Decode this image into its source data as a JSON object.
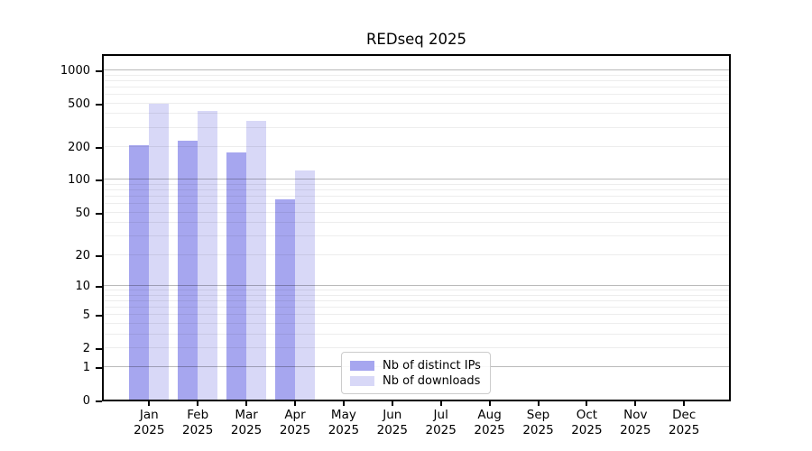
{
  "chart_data": {
    "type": "bar",
    "title": "REDseq 2025",
    "year_label": "2025",
    "categories": [
      "Jan",
      "Feb",
      "Mar",
      "Apr",
      "May",
      "Jun",
      "Jul",
      "Aug",
      "Sep",
      "Oct",
      "Nov",
      "Dec"
    ],
    "series": [
      {
        "name": "Nb of distinct IPs",
        "color": "#a6a6ef",
        "values": [
          205,
          225,
          175,
          65,
          null,
          null,
          null,
          null,
          null,
          null,
          null,
          null
        ]
      },
      {
        "name": "Nb of downloads",
        "color": "#d8d8f7",
        "values": [
          490,
          420,
          340,
          120,
          null,
          null,
          null,
          null,
          null,
          null,
          null,
          null
        ]
      }
    ],
    "y_scale": "log10(value+1)",
    "y_ticks": [
      0,
      1,
      2,
      5,
      10,
      20,
      50,
      100,
      200,
      500,
      1000
    ],
    "y_minor_gridlines": [
      2,
      3,
      4,
      5,
      6,
      7,
      8,
      9,
      20,
      30,
      40,
      50,
      60,
      70,
      80,
      90,
      200,
      300,
      400,
      500,
      600,
      700,
      800,
      900
    ],
    "y_major_gridlines": [
      1,
      10,
      100,
      1000
    ],
    "ylim": [
      0,
      1400
    ],
    "grid": "horizontal, drawn over bars",
    "legend_position": "inside-bottom-center",
    "colors": {
      "spine": "#000000",
      "major_grid": "#b9b9b9",
      "minor_grid": "#ededed",
      "background": "#ffffff"
    }
  }
}
